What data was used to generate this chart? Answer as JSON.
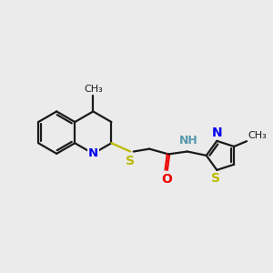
{
  "bg_color": "#ebebeb",
  "bond_color": "#1a1a1a",
  "N_color": "#0000ee",
  "S_color": "#bbbb00",
  "O_color": "#ee0000",
  "NH_color": "#5599aa",
  "lw": 1.6,
  "fs": 9.5,
  "xlim": [
    0,
    10
  ],
  "ylim": [
    2,
    8
  ]
}
